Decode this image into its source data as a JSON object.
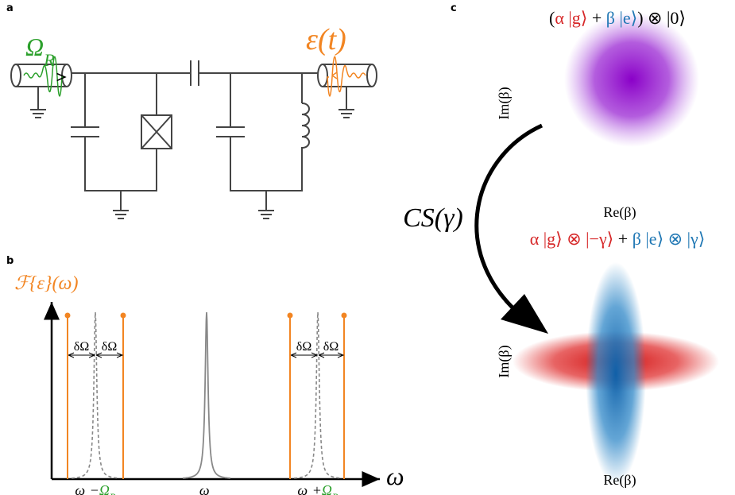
{
  "panel_a": {
    "label": "a",
    "drive": [
      {
        "text": "Ω",
        "color": "#2ca02c"
      },
      {
        "text": "R",
        "color": "#2ca02c",
        "sub": true
      }
    ],
    "signal": [
      {
        "text": "ε(t)",
        "color": "#f28522"
      }
    ]
  },
  "panel_b": {
    "label": "b",
    "y_label": [
      {
        "text": "ℱ{ε}(ω)",
        "color": "#f28522"
      }
    ],
    "x_label": [
      {
        "text": "ω"
      }
    ],
    "detunings": [
      "δΩ",
      "δΩ",
      "δΩ",
      "δΩ"
    ],
    "ticks": [
      [
        {
          "text": "ω"
        },
        {
          "text": "c",
          "sub": true
        },
        {
          "text": "−"
        },
        {
          "text": "Ω",
          "color": "#2ca02c"
        },
        {
          "text": "R",
          "sub": true,
          "color": "#2ca02c"
        }
      ],
      [
        {
          "text": "ω"
        },
        {
          "text": "c",
          "sub": true
        }
      ],
      [
        {
          "text": "ω"
        },
        {
          "text": "c",
          "sub": true
        },
        {
          "text": "+"
        },
        {
          "text": "Ω",
          "color": "#2ca02c"
        },
        {
          "text": "R",
          "sub": true,
          "color": "#2ca02c"
        }
      ]
    ]
  },
  "panel_c": {
    "label": "c",
    "initial_state": [
      {
        "text": "("
      },
      {
        "text": "α |g⟩",
        "color": "#d62728"
      },
      {
        "text": " + "
      },
      {
        "text": "β |e⟩",
        "color": "#1f77b4"
      },
      {
        "text": ") ⊗ |0⟩"
      }
    ],
    "initial_axes": {
      "im": "Im(β)",
      "re": "Re(β)"
    },
    "gate": "CS(γ)",
    "final_state": [
      {
        "text": "α |g⟩ ⊗ |−γ⟩",
        "color": "#d62728"
      },
      {
        "text": " + "
      },
      {
        "text": "β |e⟩ ⊗ |γ⟩",
        "color": "#1f77b4"
      }
    ],
    "final_axes": {
      "im": "Im(β)",
      "re": "Re(β)"
    }
  }
}
